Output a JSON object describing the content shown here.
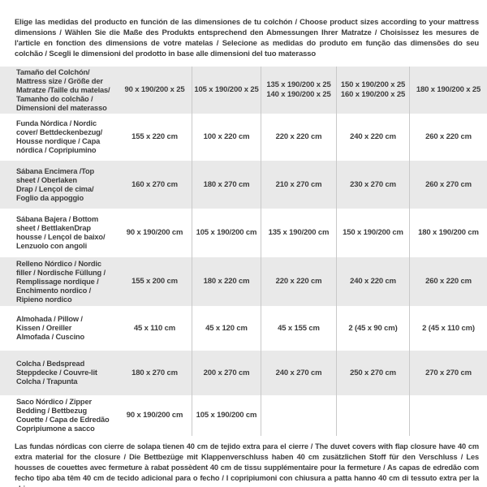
{
  "header": {
    "intro": "Elige las medidas del producto en función de las dimensiones de tu colchón / Choose product sizes according to your mattress dimensions / Wählen Sie die Maße des Produkts entsprechend den Abmessungen Ihrer Matratze / Choisissez les mesures de l'article en fonction des dimensions de votre matelas / Selecione as medidas do produto em função das dimensões do seu colchão / Scegli le dimensioni del prodotto in base alle dimensioni del tuo materasso"
  },
  "table": {
    "rows": [
      {
        "label": "Tamaño del Colchón/\nMattress size / Größe der\nMatratze /Taille du matelas/\nTamanho do colchão /\nDimensioni del materasso",
        "cells": [
          "90 x 190/200 x 25",
          "105 x 190/200 x 25",
          "135 x 190/200 x 25\n140 x 190/200 x 25",
          "150 x 190/200 x 25\n160 x 190/200 x 25",
          "180 x 190/200 x 25"
        ]
      },
      {
        "label": "Funda Nórdica / Nordic\ncover/ Bettdeckenbezug/\nHousse nordique / Capa\nnórdica / Copripiumino",
        "cells": [
          "155 x 220 cm",
          "100 x 220 cm",
          "220 x 220 cm",
          "240 x 220 cm",
          "260 x 220 cm"
        ]
      },
      {
        "label": "Sábana Encimera /Top\nsheet / Oberlaken\nDrap / Lençol de cima/\nFoglio da appoggio",
        "cells": [
          "160 x 270 cm",
          "180 x 270 cm",
          "210 x 270 cm",
          "230 x 270 cm",
          "260 x 270 cm"
        ]
      },
      {
        "label": "Sábana Bajera / Bottom\nsheet / BettlakenDrap\nhousse / Lençol de baixo/\nLenzuolo con angoli",
        "cells": [
          "90 x 190/200 cm",
          "105 x 190/200 cm",
          "135 x 190/200 cm",
          "150 x 190/200 cm",
          "180 x 190/200 cm"
        ]
      },
      {
        "label": "Relleno Nórdico / Nordic\nfiller / Nordische Füllung /\nRemplissage nordique /\nEnchimento nordico /\nRipieno nordico",
        "cells": [
          "155 x 200 cm",
          "180 x 220 cm",
          "220 x 220 cm",
          "240 x 220 cm",
          "260 x 220 cm"
        ]
      },
      {
        "label": "Almohada / Pillow /\nKissen / Oreiller\nAlmofada / Cuscino",
        "cells": [
          "45 x 110 cm",
          "45 x 120 cm",
          "45 x 155 cm",
          "2 (45 x 90 cm)",
          "2 (45 x 110 cm)"
        ]
      },
      {
        "label": "Colcha / Bedspread\nSteppdecke / Couvre-lit\nColcha / Trapunta",
        "cells": [
          "180 x 270 cm",
          "200 x 270 cm",
          "240 x 270 cm",
          "250 x 270 cm",
          "270 x 270 cm"
        ]
      },
      {
        "label": "Saco Nórdico / Zipper\nBedding / Bettbezug\nCouette / Capa de Edredão\nCopripiumone a sacco",
        "cells": [
          "90 x 190/200 cm",
          "105 x 190/200 cm",
          "",
          "",
          ""
        ]
      }
    ]
  },
  "footer": {
    "note": "Las fundas nórdicas con cierre de solapa tienen 40 cm de tejido extra para el cierre / The duvet covers with flap closure have 40 cm extra material for the closure / Die Bettbezüge mit Klappenverschluss haben 40 cm zusätzlichen Stoff für den Verschluss / Les housses de couettes avec fermeture à rabat possèdent 40 cm de tissu supplémentaire pour la fermeture / As capas de edredão com fecho tipo aba têm 40 cm de tecido adicional para o fecho / I copripiumoni con chiusura a patta hanno 40 cm di tessuto extra per la chiusura"
  },
  "colors": {
    "band": "#e9e9e9",
    "divider": "#c9c9c9",
    "text": "#3d3d3d",
    "background": "#ffffff"
  }
}
